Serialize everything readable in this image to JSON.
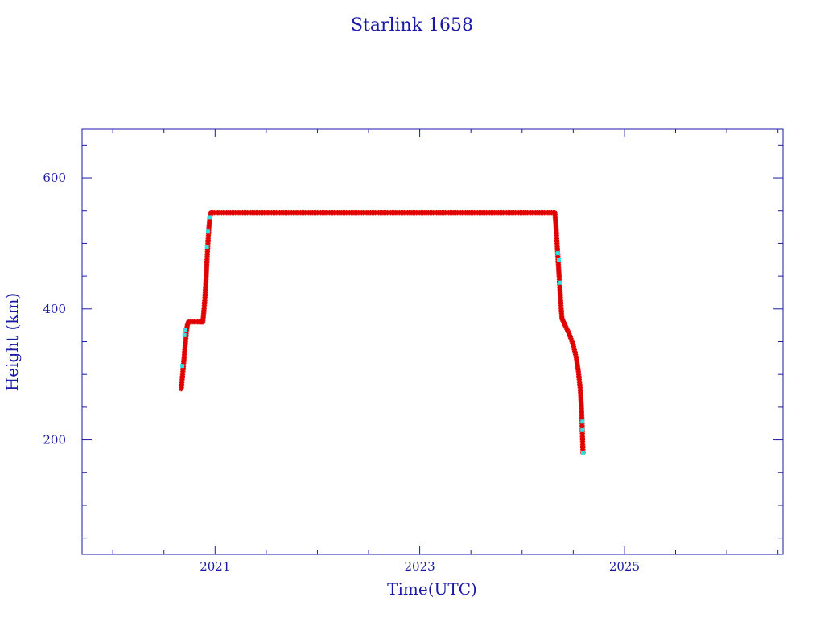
{
  "chart_data": {
    "type": "scatter",
    "title": "Starlink 1658",
    "xlabel": "Time(UTC)",
    "ylabel": "Height (km)",
    "xlim": [
      2019.7,
      2026.55
    ],
    "ylim": [
      25,
      675
    ],
    "x_ticks": [
      {
        "value": 2021,
        "label": "2021"
      },
      {
        "value": 2023,
        "label": "2023"
      },
      {
        "value": 2025,
        "label": "2025"
      }
    ],
    "y_ticks": [
      {
        "value": 200,
        "label": "200"
      },
      {
        "value": 400,
        "label": "400"
      },
      {
        "value": 600,
        "label": "600"
      }
    ],
    "grid": false,
    "legend": "none",
    "colors": {
      "axes": "#1a1aa6",
      "line": "#1f5fd0",
      "primary_points": "#e00000",
      "secondary_points": "#33e0e0"
    },
    "series": [
      {
        "points": [
          [
            2020.67,
            278
          ],
          [
            2020.68,
            295
          ],
          [
            2020.69,
            312
          ],
          [
            2020.7,
            330
          ],
          [
            2020.71,
            348
          ],
          [
            2020.72,
            365
          ],
          [
            2020.73,
            376
          ],
          [
            2020.74,
            380
          ],
          [
            2020.8,
            380
          ],
          [
            2020.86,
            380
          ],
          [
            2020.88,
            380
          ],
          [
            2020.89,
            395
          ],
          [
            2020.9,
            415
          ],
          [
            2020.91,
            440
          ],
          [
            2020.92,
            470
          ],
          [
            2020.93,
            500
          ],
          [
            2020.94,
            525
          ],
          [
            2020.95,
            540
          ],
          [
            2020.96,
            547
          ],
          [
            2021.2,
            547
          ],
          [
            2021.6,
            547
          ],
          [
            2022.0,
            547
          ],
          [
            2022.4,
            547
          ],
          [
            2022.8,
            547
          ],
          [
            2023.2,
            547
          ],
          [
            2023.6,
            547
          ],
          [
            2024.0,
            547
          ],
          [
            2024.32,
            547
          ],
          [
            2024.33,
            530
          ],
          [
            2024.34,
            505
          ],
          [
            2024.35,
            480
          ],
          [
            2024.36,
            455
          ],
          [
            2024.37,
            430
          ],
          [
            2024.38,
            405
          ],
          [
            2024.39,
            385
          ],
          [
            2024.42,
            375
          ],
          [
            2024.46,
            362
          ],
          [
            2024.5,
            345
          ],
          [
            2024.53,
            325
          ],
          [
            2024.55,
            305
          ],
          [
            2024.56,
            290
          ],
          [
            2024.57,
            275
          ],
          [
            2024.575,
            262
          ],
          [
            2024.58,
            250
          ],
          [
            2024.585,
            230
          ],
          [
            2024.59,
            205
          ],
          [
            2024.595,
            180
          ]
        ]
      }
    ],
    "highlight_points": [
      [
        2020.68,
        313
      ],
      [
        2020.7,
        360
      ],
      [
        2020.71,
        368
      ],
      [
        2020.92,
        495
      ],
      [
        2020.93,
        518
      ],
      [
        2020.95,
        540
      ],
      [
        2024.35,
        485
      ],
      [
        2024.36,
        475
      ],
      [
        2024.37,
        440
      ],
      [
        2024.59,
        228
      ],
      [
        2024.59,
        215
      ],
      [
        2024.595,
        180
      ]
    ]
  }
}
